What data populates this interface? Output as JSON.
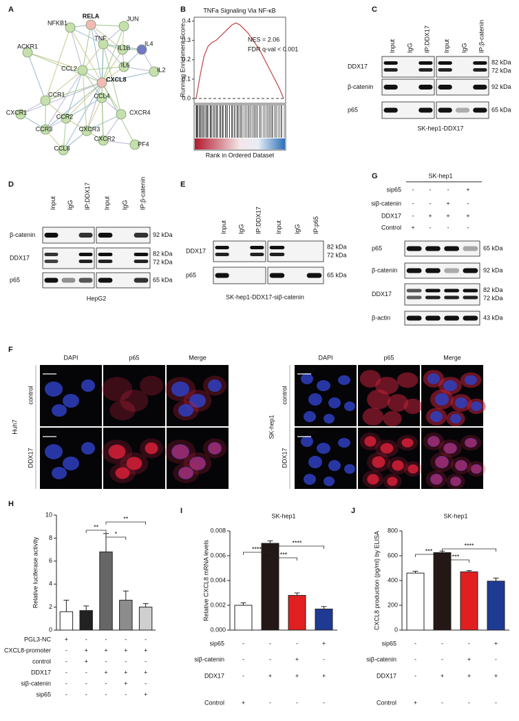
{
  "figures": {
    "network": {
      "label": "A",
      "nodes": [
        {
          "name": "RELA",
          "label_color": "#d62728"
        },
        {
          "name": "JUN"
        },
        {
          "name": "NFKB1"
        },
        {
          "name": "TNF"
        },
        {
          "name": "IL1B"
        },
        {
          "name": "IL4"
        },
        {
          "name": "ACKR1"
        },
        {
          "name": "IL6"
        },
        {
          "name": "IL2"
        },
        {
          "name": "CCL2"
        },
        {
          "name": "CXCL8",
          "label_color": "#d62728"
        },
        {
          "name": "CCR1"
        },
        {
          "name": "CCL4"
        },
        {
          "name": "CXCR1"
        },
        {
          "name": "CCR2"
        },
        {
          "name": "CXCR4"
        },
        {
          "name": "CCR3"
        },
        {
          "name": "CXCR3"
        },
        {
          "name": "CXCR2"
        },
        {
          "name": "PF4"
        },
        {
          "name": "CCL8"
        }
      ]
    },
    "blot_C": {
      "label": "C",
      "lanes": [
        "Input",
        "IgG",
        "IP:DDX17",
        "Input",
        "IgG",
        "IP:β-catenin"
      ],
      "rows": [
        {
          "name": "DDX17",
          "kda": [
            "82 kDa",
            "72 kDa"
          ]
        },
        {
          "name": "β-catenin",
          "kda": [
            "92 kDa"
          ]
        },
        {
          "name": "p65",
          "kda": [
            "65 kDa"
          ]
        }
      ],
      "caption": "SK-hep1-DDX17"
    },
    "blot_D": {
      "label": "D",
      "lanes": [
        "Input",
        "IgG",
        "IP:DDX17",
        "Input",
        "IgG",
        "IP:β-catenin"
      ],
      "rows": [
        {
          "name": "β-catenin",
          "kda": [
            "92 kDa"
          ]
        },
        {
          "name": "DDX17",
          "kda": [
            "82 kDa",
            "72 kDa"
          ]
        },
        {
          "name": "p65",
          "kda": [
            "65 kDa"
          ]
        }
      ],
      "caption": "HepG2"
    },
    "blot_E": {
      "label": "E",
      "lanes": [
        "Input",
        "IgG",
        "IP:DDX17",
        "Input",
        "IgG",
        "IP:p65"
      ],
      "rows": [
        {
          "name": "DDX17",
          "kda": [
            "82 kDa",
            "72 kDa"
          ]
        },
        {
          "name": "p65",
          "kda": [
            "65 kDa"
          ]
        }
      ],
      "caption": "SK-hep1-DDX17-siβ-catenin"
    },
    "blot_G": {
      "label": "G",
      "title": "SK-hep1",
      "conditions": [
        {
          "label": "sip65",
          "marks": [
            "-",
            "-",
            "-",
            "+"
          ]
        },
        {
          "label": "siβ-catenin",
          "marks": [
            "-",
            "-",
            "+",
            "-"
          ]
        },
        {
          "label": "DDX17",
          "marks": [
            "-",
            "+",
            "+",
            "+"
          ]
        },
        {
          "label": "Control",
          "marks": [
            "+",
            "-",
            "-",
            "-"
          ]
        }
      ],
      "rows": [
        {
          "name": "p65",
          "kda": [
            "65 kDa"
          ]
        },
        {
          "name": "β-catenin",
          "kda": [
            "92 kDa"
          ]
        },
        {
          "name": "DDX17",
          "kda": [
            "82 kDa",
            "72 kDa"
          ]
        },
        {
          "name": "β-actin",
          "kda": [
            "43 kDa"
          ]
        }
      ]
    },
    "imaging_F": {
      "label": "F",
      "columns": [
        "DAPI",
        "p65",
        "Merge"
      ],
      "rows": [
        "control",
        "DDX17"
      ],
      "scale": "10 µm",
      "cell_lines": [
        "Huh7",
        "SK-hep1"
      ]
    }
  },
  "chart_data": [
    {
      "type": "line",
      "panel_label": "B",
      "title": "TNFa Signaling Via NF-κB",
      "y_label": "Running Enrichment Score",
      "x_label": "Rank in Ordered Dataset",
      "annotations": [
        "NES = 2.06",
        "FDR q-val < 0.001"
      ],
      "color": "#c0504d",
      "values": [
        0,
        0.12,
        0.22,
        0.27,
        0.29,
        0.3,
        0.32,
        0.34,
        0.36,
        0.38,
        0.39,
        0.38,
        0.36,
        0.34,
        0.31,
        0.28,
        0.25,
        0.21,
        0.17,
        0.13,
        0.09,
        0.05,
        0
      ],
      "ylim": [
        -0.025,
        0.42
      ],
      "yticks": [
        {
          "value": 0,
          "label": "0.0"
        },
        0.1,
        0.2,
        0.3,
        0.4
      ]
    },
    {
      "type": "bar",
      "panel_label": "H",
      "y_label": "Relative luciferase activity",
      "values": [
        1.6,
        1.7,
        6.8,
        2.6,
        2.0
      ],
      "errors": [
        1.0,
        0.4,
        1.6,
        0.8,
        0.3
      ],
      "colors": [
        "#ffffff",
        "#222222",
        "#666666",
        "#8c8c8c",
        "#cfcfcf"
      ],
      "ylim": [
        0,
        10
      ],
      "yticks": [
        0,
        2,
        4,
        6,
        8,
        10
      ],
      "annotations": [
        "**",
        "*",
        "**"
      ],
      "conditions": [
        {
          "label": "PGL3-NC",
          "marks": [
            "+",
            "-",
            "-",
            "-",
            "-"
          ]
        },
        {
          "label": "CXCL8-promoter",
          "marks": [
            "-",
            "+",
            "+",
            "+",
            "+"
          ]
        },
        {
          "label": "control",
          "marks": [
            "-",
            "+",
            "-",
            "-",
            "-"
          ]
        },
        {
          "label": "DDX17",
          "marks": [
            "-",
            "-",
            "+",
            "+",
            "+"
          ]
        },
        {
          "label": "siβ-catenin",
          "marks": [
            "-",
            "-",
            "-",
            "+",
            "-"
          ]
        },
        {
          "label": "sip65",
          "marks": [
            "-",
            "-",
            "-",
            "-",
            "+"
          ]
        }
      ]
    },
    {
      "type": "bar",
      "panel_label": "I",
      "title": "SK-hep1",
      "y_label": "Relative CXCL8 mRNA levels",
      "values": [
        0.002,
        0.007,
        0.0028,
        0.0017
      ],
      "errors": [
        0.0002,
        0.0002,
        0.0002,
        0.0002
      ],
      "colors": [
        "#ffffff",
        "#231815",
        "#e02020",
        "#1f3a93"
      ],
      "ylim": [
        0,
        0.008
      ],
      "yticks": [
        {
          "value": 0,
          "label": "0.000"
        },
        {
          "value": 0.002,
          "label": "0.002"
        },
        {
          "value": 0.004,
          "label": "0.004"
        },
        {
          "value": 0.006,
          "label": "0.006"
        },
        {
          "value": 0.008,
          "label": "0.008"
        }
      ],
      "annotations": [
        "****",
        "***",
        "****"
      ],
      "conditions": [
        {
          "label": "sip65",
          "marks": [
            "-",
            "-",
            "-",
            "+"
          ]
        },
        {
          "label": "siβ-catenin",
          "marks": [
            "-",
            "-",
            "+",
            "-"
          ]
        },
        {
          "label": "DDX17",
          "marks": [
            "-",
            "+",
            "+",
            "+"
          ]
        },
        {
          "label": "Control",
          "marks": [
            "+",
            "-",
            "-",
            "-"
          ]
        }
      ]
    },
    {
      "type": "bar",
      "panel_label": "J",
      "title": "SK-hep1",
      "y_label": "CXCL8 production (pg/ml) by ELISA",
      "values": [
        460,
        625,
        470,
        395
      ],
      "errors": [
        15,
        12,
        10,
        25
      ],
      "colors": [
        "#ffffff",
        "#231815",
        "#e02020",
        "#1f3a93"
      ],
      "ylim": [
        0,
        800
      ],
      "yticks": [
        0,
        200,
        400,
        600,
        800
      ],
      "annotations": [
        "***",
        "***",
        "****"
      ],
      "conditions": [
        {
          "label": "sip65",
          "marks": [
            "-",
            "-",
            "-",
            "+"
          ]
        },
        {
          "label": "siβ-catenin",
          "marks": [
            "-",
            "-",
            "+",
            "-"
          ]
        },
        {
          "label": "DDX17",
          "marks": [
            "-",
            "+",
            "+",
            "+"
          ]
        },
        {
          "label": "Control",
          "marks": [
            "+",
            "-",
            "-",
            "-"
          ]
        }
      ]
    }
  ]
}
